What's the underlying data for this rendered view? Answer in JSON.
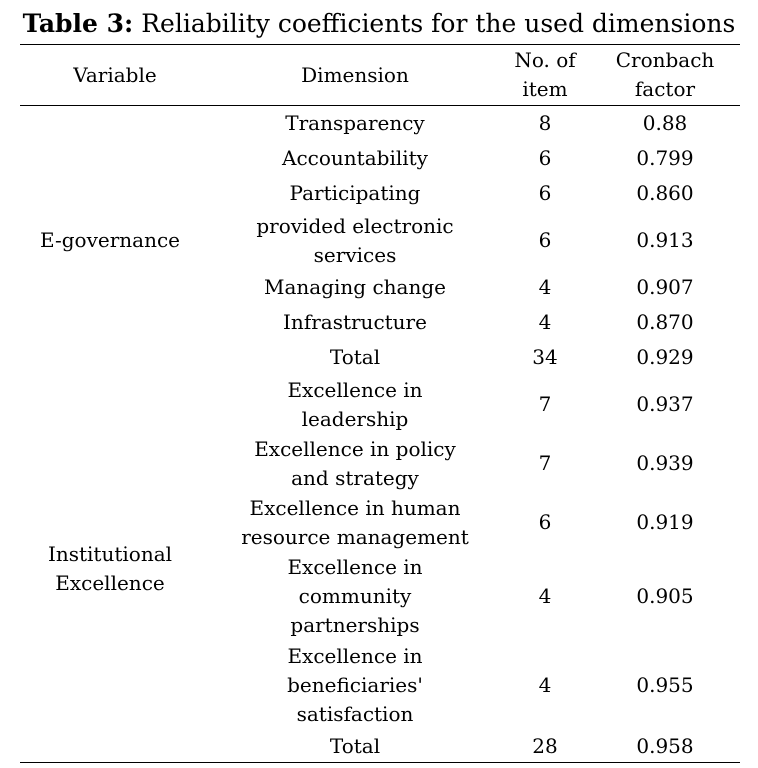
{
  "caption": {
    "lead": "Table 3:",
    "text": " Reliability coefficients for the used dimensions"
  },
  "header": {
    "variable": "Variable",
    "dimension": "Dimension",
    "items_line1": "No. of",
    "items_line2": "item",
    "cronbach_line1": "Cronbach",
    "cronbach_line2": "factor"
  },
  "groups": [
    {
      "variable_lines": [
        "E-governance"
      ],
      "rows": [
        {
          "dimension_lines": [
            "Transparency"
          ],
          "items": "8",
          "cronbach": "0.88"
        },
        {
          "dimension_lines": [
            "Accountability"
          ],
          "items": "6",
          "cronbach": "0.799"
        },
        {
          "dimension_lines": [
            "Participating"
          ],
          "items": "6",
          "cronbach": "0.860"
        },
        {
          "dimension_lines": [
            "provided electronic",
            "services"
          ],
          "items": "6",
          "cronbach": "0.913"
        },
        {
          "dimension_lines": [
            "Managing change"
          ],
          "items": "4",
          "cronbach": "0.907"
        },
        {
          "dimension_lines": [
            "Infrastructure"
          ],
          "items": "4",
          "cronbach": "0.870"
        },
        {
          "dimension_lines": [
            "Total"
          ],
          "items": "34",
          "cronbach": "0.929"
        }
      ]
    },
    {
      "variable_lines": [
        "Institutional",
        "Excellence"
      ],
      "rows": [
        {
          "dimension_lines": [
            "Excellence in",
            "leadership"
          ],
          "items": "7",
          "cronbach": "0.937"
        },
        {
          "dimension_lines": [
            "Excellence in policy",
            "and strategy"
          ],
          "items": "7",
          "cronbach": "0.939"
        },
        {
          "dimension_lines": [
            "Excellence in human",
            "resource management"
          ],
          "items": "6",
          "cronbach": "0.919"
        },
        {
          "dimension_lines": [
            "Excellence in",
            "community",
            "partnerships"
          ],
          "items": "4",
          "cronbach": "0.905"
        },
        {
          "dimension_lines": [
            "Excellence in",
            "beneficiaries'",
            "satisfaction"
          ],
          "items": "4",
          "cronbach": "0.955"
        },
        {
          "dimension_lines": [
            "Total"
          ],
          "items": "28",
          "cronbach": "0.958"
        }
      ]
    }
  ]
}
